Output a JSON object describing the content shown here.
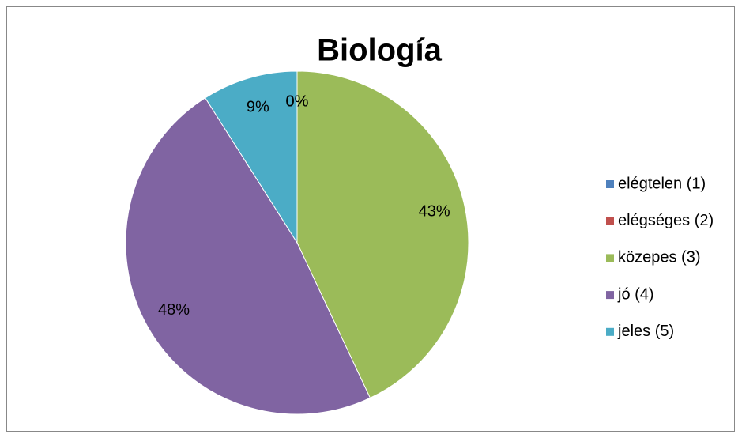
{
  "chart_data": {
    "type": "pie",
    "title": "Biología",
    "categories": [
      "elégtelen (1)",
      "elégséges (2)",
      "közepes (3)",
      "jó (4)",
      "jeles (5)"
    ],
    "values": [
      0,
      0,
      43,
      48,
      9
    ],
    "value_labels": [
      "0%",
      "0%",
      "43%",
      "48%",
      "9%"
    ],
    "colors": [
      "#4f81bd",
      "#c0504d",
      "#9bbb59",
      "#8064a2",
      "#4bacc6"
    ],
    "legend": "right"
  }
}
